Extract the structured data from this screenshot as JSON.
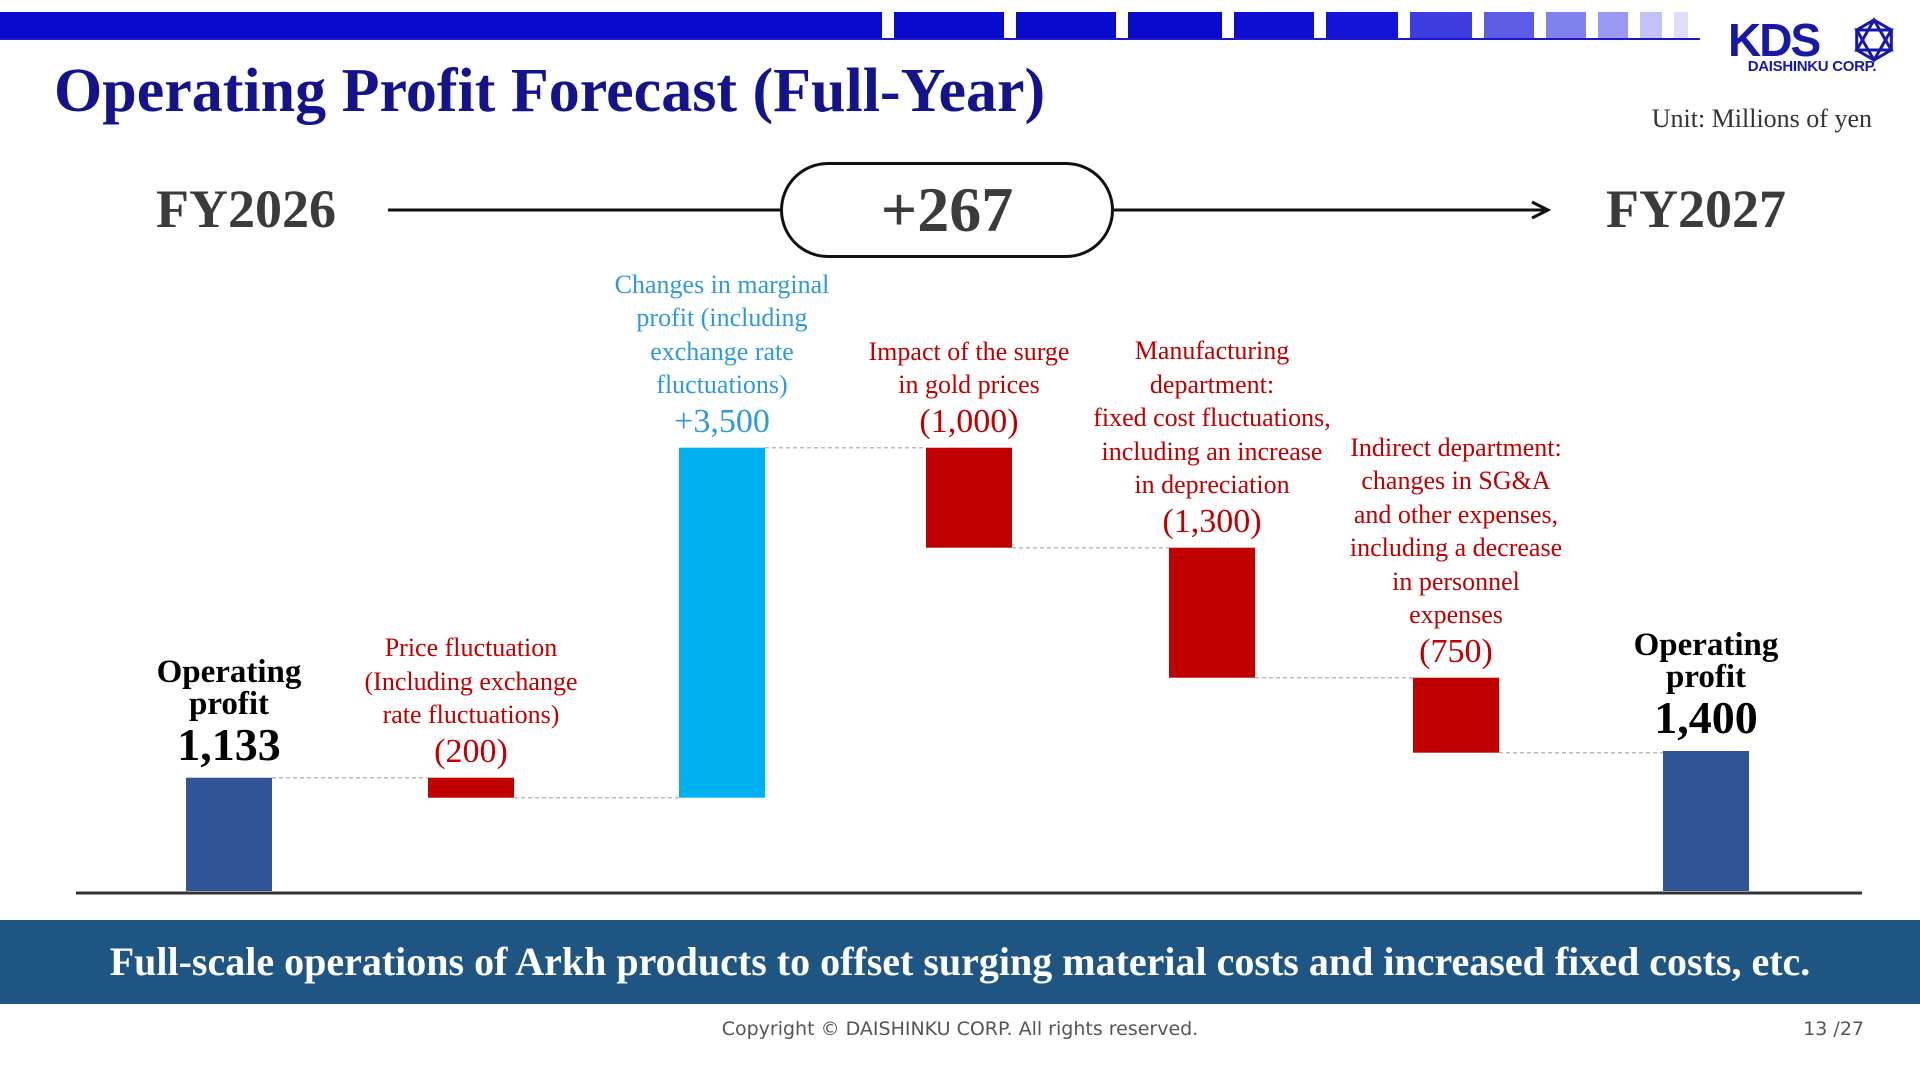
{
  "header": {
    "title": "Operating Profit Forecast (Full-Year)",
    "unit": "Unit: Millions of yen",
    "logo_text": "KDS",
    "logo_subtext": "DAISHINKU CORP."
  },
  "timeline": {
    "start": "FY2026",
    "end": "FY2027",
    "change": "+267"
  },
  "chart_data": {
    "type": "waterfall",
    "unit": "Millions of yen",
    "steps": [
      {
        "label": [
          "Operating",
          "profit"
        ],
        "value": 1133,
        "value_text": "1,133",
        "kind": "total"
      },
      {
        "label": [
          "Price fluctuation",
          "(Including exchange",
          "rate fluctuations)"
        ],
        "value": -200,
        "value_text": "(200)",
        "kind": "decrease"
      },
      {
        "label": [
          "Changes in marginal",
          "profit (including",
          "exchange rate",
          "fluctuations)"
        ],
        "value": 3500,
        "value_text": "+3,500",
        "kind": "increase"
      },
      {
        "label": [
          "Impact of the surge",
          "in gold prices"
        ],
        "value": -1000,
        "value_text": "(1,000)",
        "kind": "decrease"
      },
      {
        "label": [
          "Manufacturing",
          "department:",
          "fixed cost fluctuations,",
          "including an increase",
          "in depreciation"
        ],
        "value": -1300,
        "value_text": "(1,300)",
        "kind": "decrease"
      },
      {
        "label": [
          "Indirect department:",
          "changes in SG&A",
          "and other expenses,",
          "including a decrease",
          "in personnel",
          "expenses"
        ],
        "value": -750,
        "value_text": "(750)",
        "kind": "decrease"
      },
      {
        "label": [
          "Operating",
          "profit"
        ],
        "value": 1400,
        "value_text": "1,400",
        "kind": "total"
      }
    ],
    "colors": {
      "total": "#2f5597",
      "increase": "#00b0f0",
      "decrease": "#c00000",
      "increase_text": "#2e9ad8",
      "decrease_text": "#c00000",
      "total_text": "#000000"
    }
  },
  "footer": {
    "message": "Full-scale operations of Arkh products to offset surging material costs and increased fixed costs, etc.",
    "copyright": "Copyright © DAISHINKU CORP. All rights reserved.",
    "page": "13 /27"
  }
}
